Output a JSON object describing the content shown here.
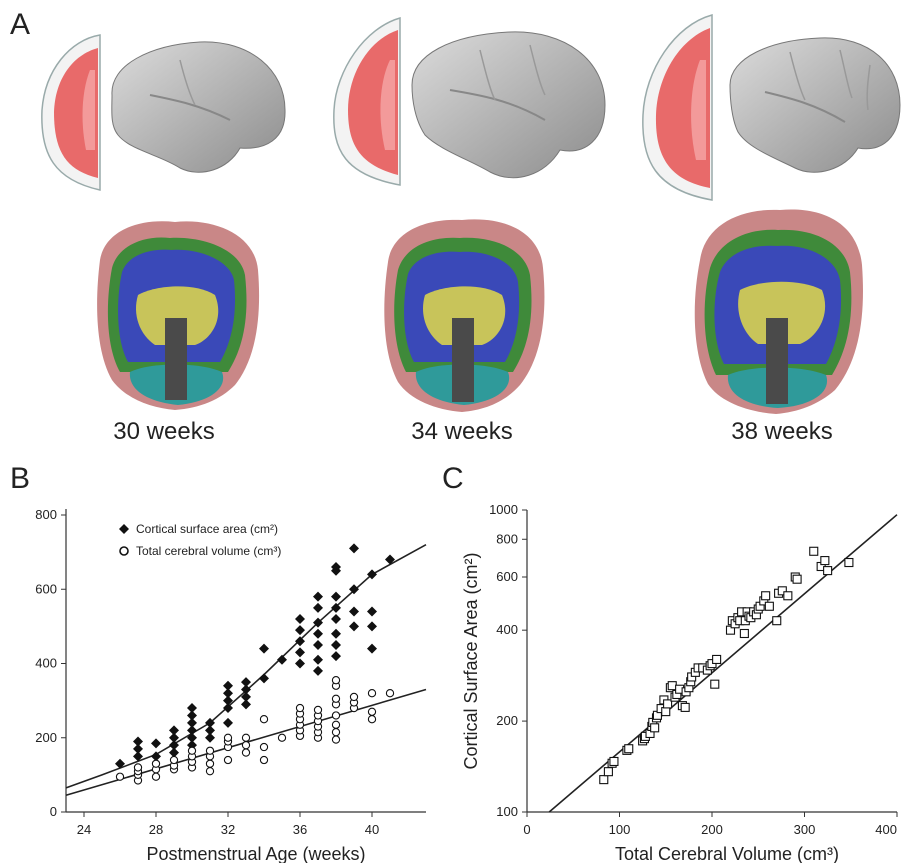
{
  "panels": {
    "a": {
      "letter": "A",
      "weeks": [
        "30 weeks",
        "34 weeks",
        "38 weeks"
      ]
    },
    "b": {
      "letter": "B"
    },
    "c": {
      "letter": "C"
    }
  },
  "colors": {
    "gray_matter": "#e76a6a",
    "white_matter": "#3a49b8",
    "cortex_green": "#3f8a3a",
    "ventricle_yellow": "#c8c45a",
    "cerebellum_teal": "#2f9a9a",
    "csf_pink": "#c98787",
    "brainstem": "#4a4a4a",
    "surface_gray": "#c4c4c4"
  },
  "chart_data": [
    {
      "type": "scatter",
      "xlabel": "Postmenstrual Age (weeks)",
      "xlim": [
        23,
        43
      ],
      "ylim": [
        0,
        800
      ],
      "xticks": [
        24,
        28,
        32,
        36,
        40
      ],
      "yticks": [
        0,
        200,
        400,
        600,
        800
      ],
      "legend_position": "top-left",
      "series": [
        {
          "name": "Cortical surface area (cm²)",
          "marker": "filled-diamond",
          "points": [
            [
              26,
              130
            ],
            [
              27,
              150
            ],
            [
              27,
              170
            ],
            [
              27,
              190
            ],
            [
              28,
              150
            ],
            [
              28,
              185
            ],
            [
              29,
              160
            ],
            [
              29,
              180
            ],
            [
              29,
              200
            ],
            [
              29,
              220
            ],
            [
              30,
              180
            ],
            [
              30,
              200
            ],
            [
              30,
              220
            ],
            [
              30,
              240
            ],
            [
              30,
              260
            ],
            [
              30,
              280
            ],
            [
              31,
              200
            ],
            [
              31,
              220
            ],
            [
              31,
              240
            ],
            [
              32,
              240
            ],
            [
              32,
              280
            ],
            [
              32,
              300
            ],
            [
              32,
              320
            ],
            [
              32,
              340
            ],
            [
              33,
              290
            ],
            [
              33,
              310
            ],
            [
              33,
              330
            ],
            [
              33,
              350
            ],
            [
              34,
              360
            ],
            [
              34,
              440
            ],
            [
              35,
              410
            ],
            [
              36,
              400
            ],
            [
              36,
              430
            ],
            [
              36,
              460
            ],
            [
              36,
              490
            ],
            [
              36,
              520
            ],
            [
              37,
              380
            ],
            [
              37,
              410
            ],
            [
              37,
              450
            ],
            [
              37,
              480
            ],
            [
              37,
              510
            ],
            [
              37,
              550
            ],
            [
              37,
              580
            ],
            [
              38,
              420
            ],
            [
              38,
              450
            ],
            [
              38,
              480
            ],
            [
              38,
              520
            ],
            [
              38,
              550
            ],
            [
              38,
              580
            ],
            [
              38,
              650
            ],
            [
              38,
              660
            ],
            [
              39,
              500
            ],
            [
              39,
              540
            ],
            [
              39,
              600
            ],
            [
              39,
              710
            ],
            [
              40,
              440
            ],
            [
              40,
              500
            ],
            [
              40,
              540
            ],
            [
              40,
              640
            ],
            [
              41,
              680
            ]
          ]
        },
        {
          "name": "Total cerebral volume (cm³)",
          "marker": "open-circle",
          "points": [
            [
              26,
              95
            ],
            [
              27,
              85
            ],
            [
              27,
              100
            ],
            [
              27,
              110
            ],
            [
              27,
              120
            ],
            [
              28,
              95
            ],
            [
              28,
              115
            ],
            [
              28,
              130
            ],
            [
              29,
              115
            ],
            [
              29,
              125
            ],
            [
              29,
              140
            ],
            [
              30,
              120
            ],
            [
              30,
              135
            ],
            [
              30,
              150
            ],
            [
              30,
              165
            ],
            [
              31,
              110
            ],
            [
              31,
              130
            ],
            [
              31,
              150
            ],
            [
              31,
              165
            ],
            [
              32,
              140
            ],
            [
              32,
              175
            ],
            [
              32,
              190
            ],
            [
              32,
              200
            ],
            [
              33,
              160
            ],
            [
              33,
              180
            ],
            [
              33,
              200
            ],
            [
              34,
              140
            ],
            [
              34,
              175
            ],
            [
              34,
              250
            ],
            [
              35,
              200
            ],
            [
              36,
              205
            ],
            [
              36,
              220
            ],
            [
              36,
              235
            ],
            [
              36,
              250
            ],
            [
              36,
              265
            ],
            [
              36,
              280
            ],
            [
              37,
              200
            ],
            [
              37,
              215
            ],
            [
              37,
              230
            ],
            [
              37,
              245
            ],
            [
              37,
              260
            ],
            [
              37,
              275
            ],
            [
              38,
              195
            ],
            [
              38,
              215
            ],
            [
              38,
              235
            ],
            [
              38,
              260
            ],
            [
              38,
              290
            ],
            [
              38,
              305
            ],
            [
              38,
              340
            ],
            [
              38,
              355
            ],
            [
              39,
              280
            ],
            [
              39,
              295
            ],
            [
              39,
              310
            ],
            [
              40,
              250
            ],
            [
              40,
              270
            ],
            [
              40,
              320
            ],
            [
              41,
              320
            ]
          ]
        }
      ],
      "fits": [
        {
          "series": "Cortical surface area (cm²)",
          "points": [
            [
              23,
              65
            ],
            [
              25,
              100
            ],
            [
              28,
              155
            ],
            [
              31,
              240
            ],
            [
              34,
              370
            ],
            [
              37,
              510
            ],
            [
              40,
              640
            ],
            [
              43,
              720
            ]
          ]
        },
        {
          "series": "Total cerebral volume (cm³)",
          "points": [
            [
              23,
              45
            ],
            [
              43,
              330
            ]
          ]
        }
      ]
    },
    {
      "type": "scatter",
      "xlabel": "Total Cerebral Volume (cm³)",
      "ylabel": "Cortical Surface Area (cm²)",
      "xlim": [
        0,
        400
      ],
      "ylim": [
        100,
        1000
      ],
      "yscale": "log",
      "xticks": [
        0,
        100,
        200,
        300,
        400
      ],
      "yticks": [
        100,
        200,
        400,
        600,
        800,
        1000
      ],
      "series": [
        {
          "marker": "open-square",
          "points": [
            [
              83,
              128
            ],
            [
              88,
              136
            ],
            [
              92,
              145
            ],
            [
              94,
              147
            ],
            [
              108,
              160
            ],
            [
              110,
              162
            ],
            [
              125,
              172
            ],
            [
              127,
              175
            ],
            [
              128,
              178
            ],
            [
              133,
              182
            ],
            [
              135,
              192
            ],
            [
              136,
              198
            ],
            [
              138,
              190
            ],
            [
              140,
              205
            ],
            [
              141,
              209
            ],
            [
              145,
              220
            ],
            [
              148,
              235
            ],
            [
              150,
              215
            ],
            [
              152,
              228
            ],
            [
              155,
              258
            ],
            [
              157,
              262
            ],
            [
              160,
              240
            ],
            [
              162,
              245
            ],
            [
              165,
              255
            ],
            [
              168,
              225
            ],
            [
              171,
              222
            ],
            [
              172,
              250
            ],
            [
              175,
              258
            ],
            [
              177,
              270
            ],
            [
              178,
              280
            ],
            [
              182,
              290
            ],
            [
              185,
              300
            ],
            [
              190,
              300
            ],
            [
              195,
              295
            ],
            [
              198,
              305
            ],
            [
              200,
              310
            ],
            [
              203,
              265
            ],
            [
              205,
              320
            ],
            [
              220,
              400
            ],
            [
              222,
              430
            ],
            [
              225,
              420
            ],
            [
              228,
              440
            ],
            [
              230,
              430
            ],
            [
              232,
              460
            ],
            [
              235,
              390
            ],
            [
              236,
              430
            ],
            [
              238,
              460
            ],
            [
              240,
              445
            ],
            [
              242,
              440
            ],
            [
              245,
              460
            ],
            [
              248,
              450
            ],
            [
              250,
              470
            ],
            [
              252,
              480
            ],
            [
              256,
              500
            ],
            [
              258,
              520
            ],
            [
              262,
              480
            ],
            [
              270,
              430
            ],
            [
              272,
              530
            ],
            [
              276,
              540
            ],
            [
              282,
              520
            ],
            [
              290,
              600
            ],
            [
              292,
              590
            ],
            [
              310,
              730
            ],
            [
              318,
              650
            ],
            [
              322,
              680
            ],
            [
              325,
              630
            ],
            [
              348,
              670
            ]
          ]
        }
      ],
      "fits": [
        {
          "points": [
            [
              24,
              100
            ],
            [
              400,
              965
            ]
          ]
        }
      ]
    }
  ]
}
